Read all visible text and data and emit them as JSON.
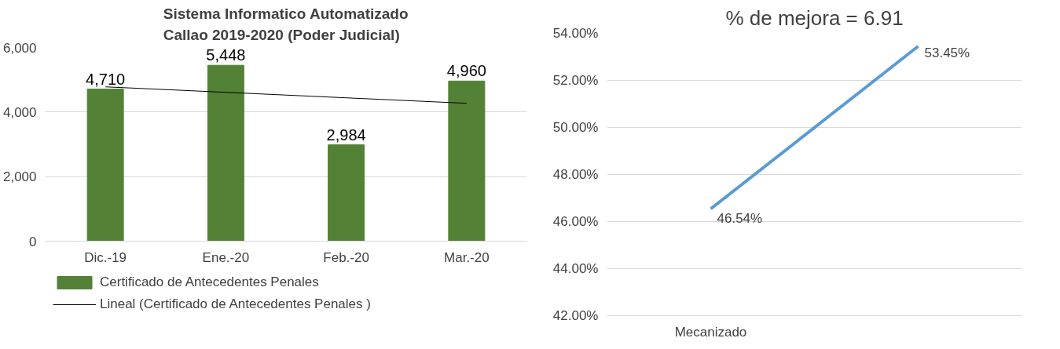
{
  "chart_data": [
    {
      "type": "bar",
      "title": "Sistema Informatico Automatizado\nCallao 2019-2020 (Poder Judicial)",
      "categories": [
        "Dic.-19",
        "Ene.-20",
        "Feb.-20",
        "Mar.-20"
      ],
      "series": [
        {
          "name": "Certificado de Antecedentes Penales",
          "color": "#538135",
          "values": [
            4710,
            5448,
            2984,
            4960
          ],
          "value_labels": [
            "4,710",
            "5,448",
            "2,984",
            "4,960"
          ]
        },
        {
          "name": "Lineal (Certificado de Antecedentes Penales )",
          "type": "line",
          "color": "#000000",
          "values": [
            4780,
            4610,
            4440,
            4270
          ]
        }
      ],
      "ylim": [
        0,
        6000
      ],
      "yticks": [
        0,
        {
          "value": 2000,
          "label": "2,000"
        },
        {
          "value": 4000,
          "label": "4,000"
        },
        {
          "value": 6000,
          "label": "6,000"
        }
      ],
      "grid": "y",
      "legend": "bottom"
    },
    {
      "type": "line",
      "title": "% de mejora = 6.91",
      "categories": [
        "Mecanizado",
        null
      ],
      "series": [
        {
          "color": "#5b9bd5",
          "values": [
            46.54,
            53.45
          ],
          "value_labels": [
            "46.54%",
            "53.45%"
          ]
        }
      ],
      "ylim": [
        42,
        54
      ],
      "yticks": [
        {
          "value": 42,
          "label": "42.00%"
        },
        {
          "value": 44,
          "label": "44.00%"
        },
        {
          "value": 46,
          "label": "46.00%"
        },
        {
          "value": 48,
          "label": "48.00%"
        },
        {
          "value": 50,
          "label": "50.00%"
        },
        {
          "value": 52,
          "label": "52.00%"
        },
        {
          "value": 54,
          "label": "54.00%"
        }
      ],
      "grid": "y",
      "legend": false
    }
  ]
}
